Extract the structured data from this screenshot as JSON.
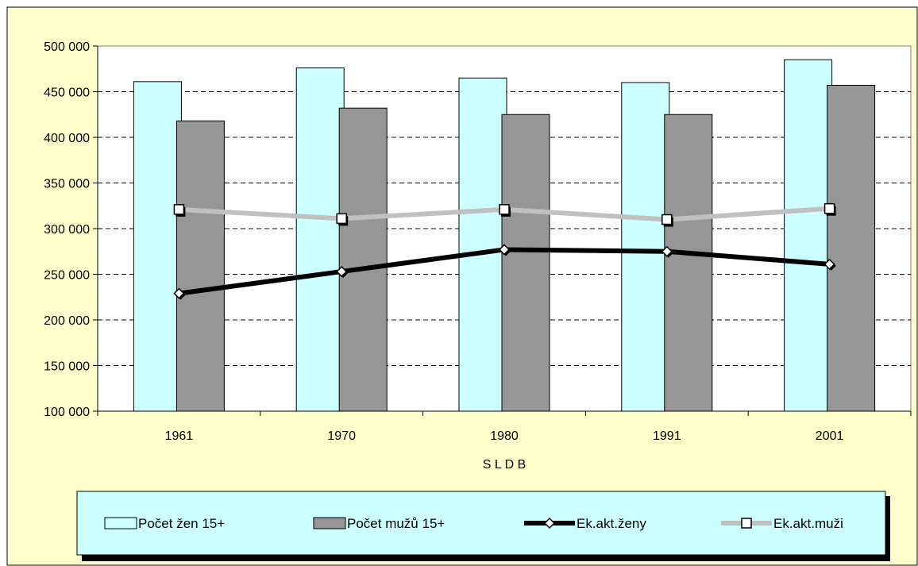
{
  "chart_data": {
    "type": "bar",
    "categories": [
      "1961",
      "1970",
      "1980",
      "1991",
      "2001"
    ],
    "xlabel": "S L D B",
    "ylabel": "",
    "ylim": [
      100000,
      500000
    ],
    "yticks": [
      100000,
      150000,
      200000,
      250000,
      300000,
      350000,
      400000,
      450000,
      500000
    ],
    "ytick_labels": [
      "100 000",
      "150 000",
      "200 000",
      "250 000",
      "300 000",
      "350 000",
      "400 000",
      "450 000",
      "500 000"
    ],
    "grid": true,
    "legend_position": "bottom",
    "series": [
      {
        "name": "Počet žen 15+",
        "kind": "bar",
        "color": "#ccffff",
        "values": [
          461000,
          476000,
          465000,
          460000,
          485000
        ]
      },
      {
        "name": "Počet mužů 15+",
        "kind": "bar",
        "color": "#969696",
        "values": [
          418000,
          432000,
          425000,
          425000,
          457000
        ]
      },
      {
        "name": "Ek.akt.ženy",
        "kind": "line",
        "color": "#000000",
        "marker": "diamond",
        "values": [
          229000,
          253000,
          277000,
          275000,
          261000
        ]
      },
      {
        "name": "Ek.akt.muži",
        "kind": "line",
        "color": "#c0c0c0",
        "marker": "square",
        "values": [
          321000,
          311000,
          321000,
          310000,
          322000
        ]
      }
    ],
    "colors": {
      "plot_background": "#ffffff",
      "chart_background": "#ffffcc",
      "legend_background": "#ccffff"
    }
  }
}
